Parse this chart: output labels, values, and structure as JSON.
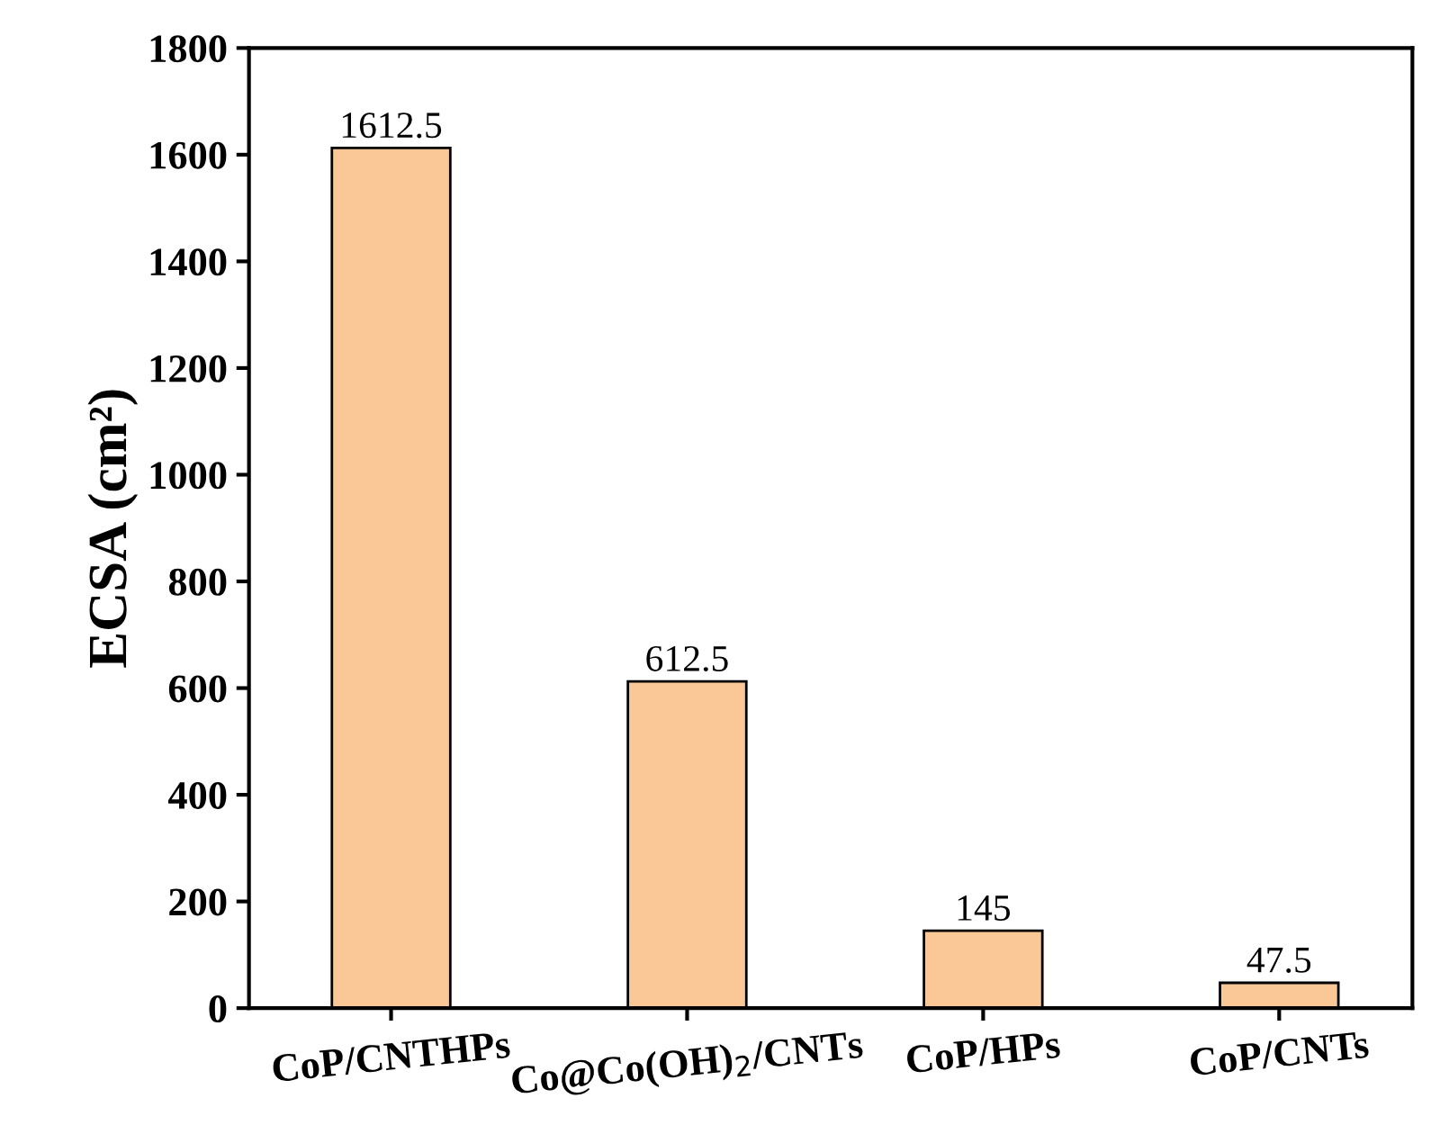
{
  "chart_data": {
    "type": "bar",
    "ylabel": "ECSA (cm²)",
    "categories": [
      "CoP/CNTHPs",
      "Co@Co(OH)$_{2}$/CNTs",
      "CoP/HPs",
      "CoP/CNTs"
    ],
    "values": [
      1612.5,
      612.5,
      145,
      47.5
    ],
    "color": "#f9c896",
    "ylim": [
      0,
      1800
    ],
    "yticks": [
      0,
      200,
      400,
      600,
      800,
      1000,
      1200,
      1400,
      1600,
      1800
    ],
    "data_labels": true,
    "grid": false,
    "legend": false
  }
}
